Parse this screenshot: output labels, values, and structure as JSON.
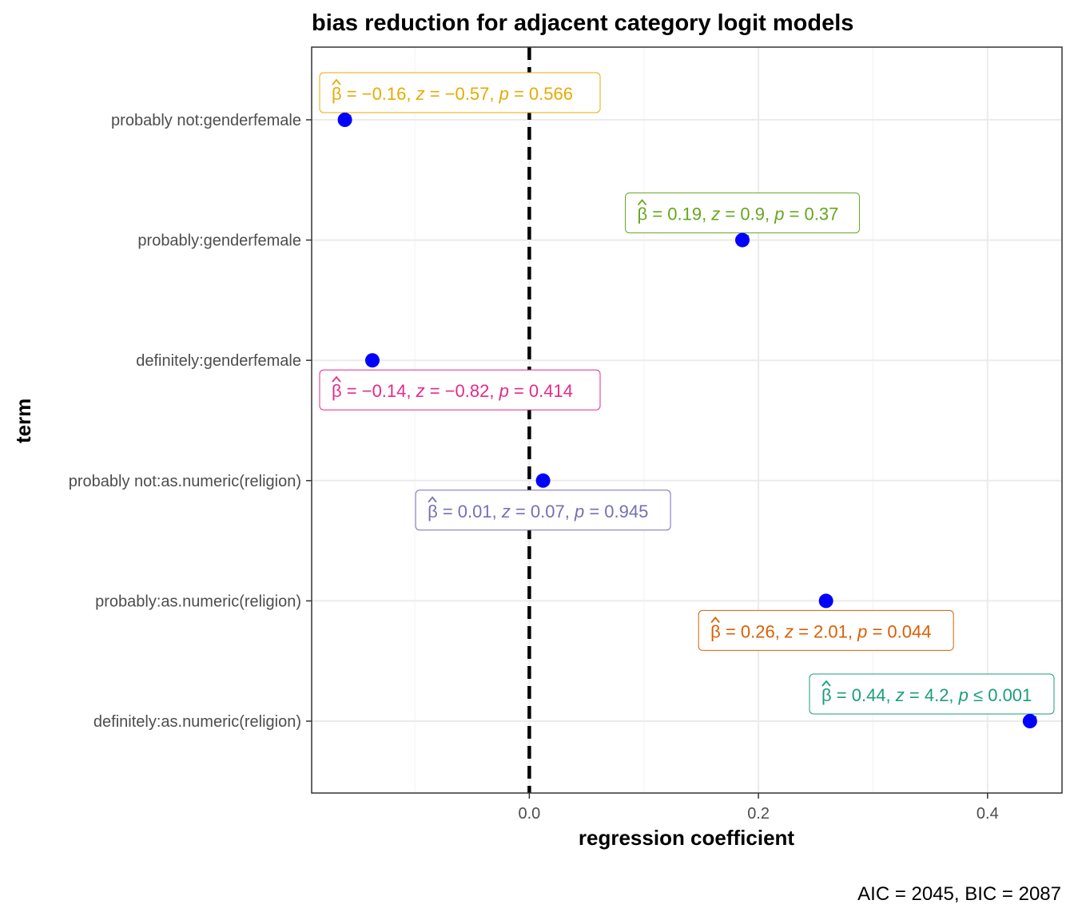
{
  "chart_data": {
    "type": "scatter",
    "title": "bias reduction for adjacent category logit models",
    "xlabel": "regression coefficient",
    "ylabel": "term",
    "caption": "AIC = 2045, BIC = 2087",
    "xlim": [
      -0.19,
      0.465
    ],
    "x_ticks": [
      0.0,
      0.2,
      0.4
    ],
    "x_tick_labels": [
      "0.0",
      "0.2",
      "0.4"
    ],
    "reference_line": 0,
    "grid": true,
    "point_color": "#0000ff",
    "terms": [
      "probably not:genderfemale",
      "probably:genderfemale",
      "definitely:genderfemale",
      "probably not:as.numeric(religion)",
      "probably:as.numeric(religion)",
      "definitely:as.numeric(religion)"
    ],
    "estimates": [
      -0.161,
      0.186,
      -0.137,
      0.012,
      0.259,
      0.437
    ],
    "labels": [
      {
        "beta": "−0.16",
        "z": "−0.57",
        "p_op": "=",
        "p": "0.566",
        "color": "#e6ab02",
        "position": "above"
      },
      {
        "beta": "0.19",
        "z": "0.9",
        "p_op": "=",
        "p": "0.37",
        "color": "#66a61e",
        "position": "above"
      },
      {
        "beta": "−0.14",
        "z": "−0.82",
        "p_op": "=",
        "p": "0.414",
        "color": "#e7298a",
        "position": "below"
      },
      {
        "beta": "0.01",
        "z": "0.07",
        "p_op": "=",
        "p": "0.945",
        "color": "#7570b3",
        "position": "below"
      },
      {
        "beta": "0.26",
        "z": "2.01",
        "p_op": "=",
        "p": "0.044",
        "color": "#d95f02",
        "position": "below"
      },
      {
        "beta": "0.44",
        "z": "4.2",
        "p_op": "≤",
        "p": "0.001",
        "color": "#1b9e77",
        "position": "above"
      }
    ]
  }
}
